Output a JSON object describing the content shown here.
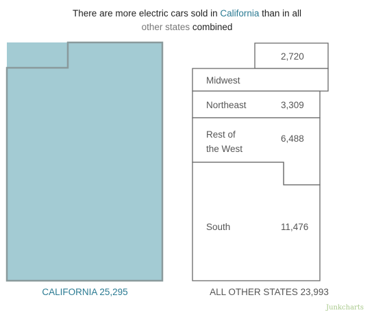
{
  "title": {
    "part1": "There are more electric cars sold in ",
    "highlight1": "California",
    "part2": " than in all",
    "highlight2": "other states",
    "part3": " combined"
  },
  "colors": {
    "california_fill": "#a3cbd3",
    "california_outline": "#8a9a9c",
    "california_label": "#2a7a92",
    "other_states_outline": "#666666",
    "title_highlight_other": "#777777",
    "credit": "#a9c98c"
  },
  "chart_data": {
    "type": "area-comparison",
    "groups": [
      {
        "name": "CALIFORNIA",
        "label": "CALIFORNIA 25,295",
        "total": 25295,
        "segments": [
          {
            "region": "California",
            "value": 25295
          }
        ]
      },
      {
        "name": "ALL OTHER STATES",
        "label": "ALL OTHER STATES 23,993",
        "total": 23993,
        "segments": [
          {
            "region": "",
            "value": 2720,
            "value_label": "2,720"
          },
          {
            "region": "Midwest",
            "value": null,
            "value_label": ""
          },
          {
            "region": "Northeast",
            "value": 3309,
            "value_label": "3,309"
          },
          {
            "region": "Rest of the West",
            "region_lines": [
              "Rest of",
              "the West"
            ],
            "value": 6488,
            "value_label": "6,488"
          },
          {
            "region": "South",
            "value": 11476,
            "value_label": "11,476"
          }
        ]
      }
    ]
  },
  "credit": "Junkcharts"
}
